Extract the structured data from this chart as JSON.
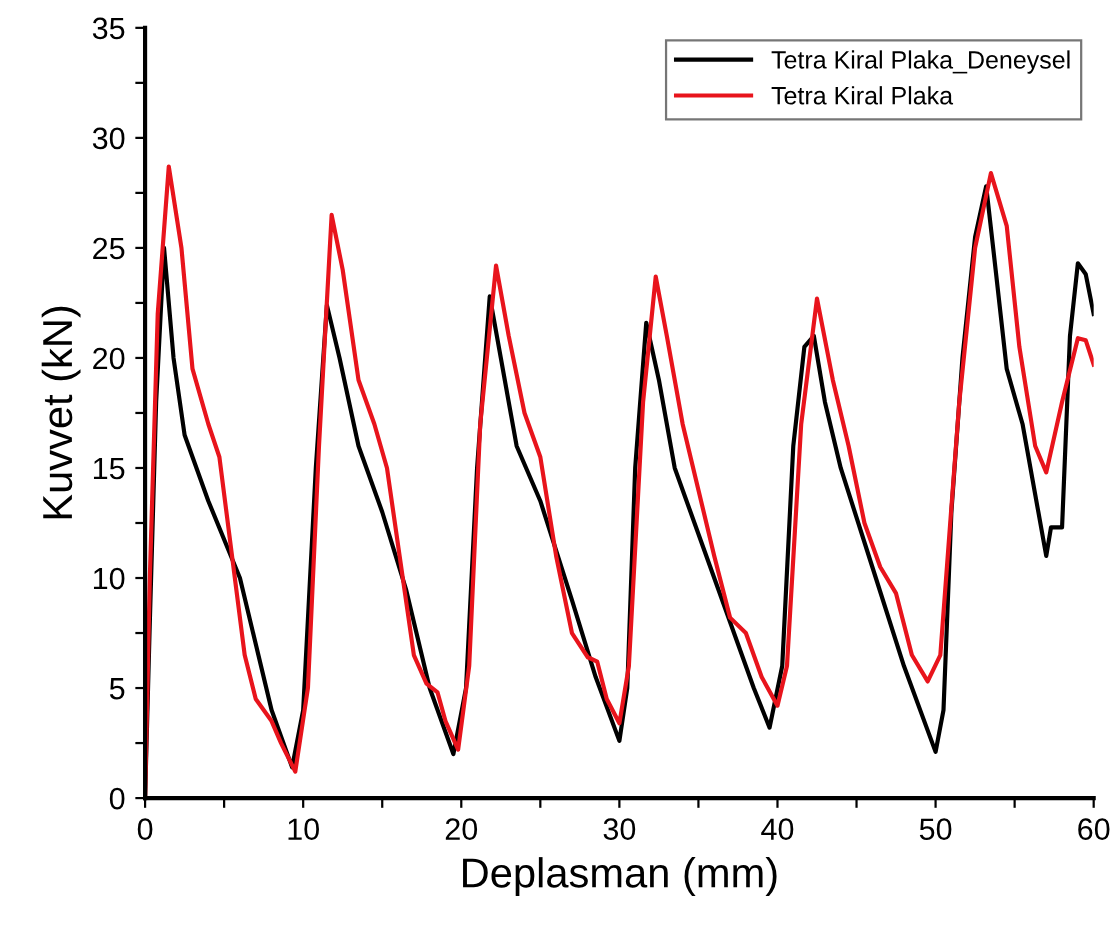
{
  "chart_data": {
    "type": "line",
    "xlabel": "Deplasman (mm)",
    "ylabel": "Kuvvet (kN)",
    "xlim": [
      0,
      60
    ],
    "ylim": [
      0,
      35
    ],
    "xticks": [
      0,
      {
        "value": 5,
        "label": null
      },
      10,
      {
        "value": 15,
        "label": null
      },
      20,
      {
        "value": 25,
        "label": null
      },
      30,
      {
        "value": 35,
        "label": null
      },
      40,
      {
        "value": 45,
        "label": null
      },
      50,
      {
        "value": 55,
        "label": null
      },
      60
    ],
    "yticks": [
      0,
      {
        "value": 2.5,
        "label": null
      },
      5,
      {
        "value": 7.5,
        "label": null
      },
      10,
      {
        "value": 12.5,
        "label": null
      },
      15,
      {
        "value": 17.5,
        "label": null
      },
      20,
      {
        "value": 22.5,
        "label": null
      },
      25,
      {
        "value": 27.5,
        "label": null
      },
      30,
      {
        "value": 32.5,
        "label": null
      },
      35
    ],
    "grid": false,
    "legend": "top right",
    "line_style": "solid",
    "marker": "none",
    "series": [
      {
        "name": "Tetra Kiral Plaka_Deneysel",
        "color": "#000000",
        "x": [
          0,
          0.3,
          0.7,
          1.2,
          1.8,
          2.5,
          4,
          6,
          7,
          8,
          9.3,
          10,
          10.8,
          11.5,
          12.3,
          13.5,
          15,
          16.5,
          18,
          19.5,
          20.3,
          21,
          21.8,
          22.5,
          23.5,
          25,
          27,
          28.5,
          30,
          30.5,
          31,
          31.7,
          32.5,
          33.5,
          35,
          37,
          38.5,
          39.5,
          40.3,
          41,
          41.7,
          42.3,
          43,
          44,
          46,
          48,
          50,
          50.5,
          51,
          51.7,
          52.5,
          53.2,
          53.8,
          54.5,
          55.5,
          56.5,
          57,
          57.3,
          58,
          58.5,
          59,
          59.5,
          60
        ],
        "values": [
          0,
          8,
          18,
          25,
          20,
          16.5,
          13.5,
          10,
          7,
          4,
          1.4,
          4,
          15,
          22.4,
          20,
          16,
          13,
          9.5,
          5,
          2,
          5,
          15,
          22.8,
          20,
          16,
          13.5,
          9,
          5.5,
          2.6,
          5,
          15,
          21.6,
          19,
          15,
          12,
          8,
          5,
          3.2,
          6,
          16,
          20.5,
          21,
          18,
          15,
          10.5,
          6,
          2.1,
          4,
          13,
          20,
          25.5,
          27.8,
          24,
          19.5,
          17,
          13,
          11,
          12.3,
          12.3,
          21,
          24.3,
          23.8,
          22
        ]
      },
      {
        "name": "Tetra Kiral Plaka",
        "color": "#e8141c",
        "x": [
          0,
          0.3,
          0.8,
          1.5,
          2.3,
          3,
          4,
          4.7,
          5.5,
          6.3,
          7,
          8,
          8.6,
          9.5,
          10.3,
          11,
          11.8,
          12.5,
          13.5,
          14.5,
          15.3,
          16.3,
          17,
          17.8,
          18.5,
          19,
          19.8,
          20.5,
          21.2,
          22.2,
          23,
          24,
          25,
          26,
          27,
          28,
          28.6,
          29.2,
          30,
          30.6,
          31.5,
          32.3,
          33,
          34,
          35,
          36,
          37,
          38,
          39,
          40,
          40.6,
          41.5,
          42.5,
          43.5,
          44.5,
          45.5,
          46.5,
          47.5,
          48.5,
          49.5,
          50.3,
          51.5,
          52.5,
          53.5,
          54.5,
          55.3,
          56.3,
          57,
          58,
          59,
          59.5,
          60
        ],
        "values": [
          0,
          10,
          22,
          28.7,
          25,
          19.5,
          17,
          15.5,
          11,
          6.5,
          4.5,
          3.5,
          2.5,
          1.2,
          5,
          16,
          26.5,
          24,
          19,
          17,
          15,
          10,
          6.5,
          5.2,
          4.8,
          3.5,
          2.2,
          6,
          17,
          24.2,
          21,
          17.5,
          15.5,
          11,
          7.5,
          6.4,
          6.2,
          4.5,
          3.4,
          6,
          18,
          23.7,
          21,
          17,
          14,
          11,
          8.2,
          7.5,
          5.5,
          4.2,
          6,
          17,
          22.7,
          19,
          16,
          12.5,
          10.5,
          9.3,
          6.5,
          5.3,
          6.5,
          18,
          25,
          28.4,
          26,
          20.5,
          16,
          14.8,
          18,
          20.9,
          20.8,
          19.7
        ]
      }
    ]
  }
}
